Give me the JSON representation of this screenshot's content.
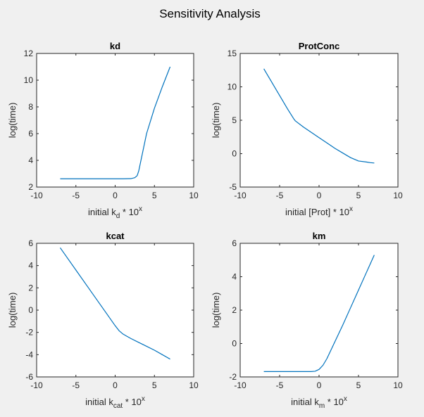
{
  "figure": {
    "title": "Sensitivity Analysis",
    "background": "#f0f0f0",
    "line_color": "#0072bd"
  },
  "chart_data": [
    {
      "type": "line",
      "title": "kd",
      "xlabel": {
        "base": "initial k",
        "sub": "d",
        "suffix": " * 10",
        "sup": "x"
      },
      "ylabel": "log(time)",
      "xlim": [
        -10,
        10
      ],
      "ylim": [
        2,
        12
      ],
      "xticks": [
        -10,
        -5,
        0,
        5,
        10
      ],
      "yticks": [
        2,
        4,
        6,
        8,
        10,
        12
      ],
      "grid": false,
      "series": [
        {
          "x": [
            -7,
            -5,
            -3,
            -1,
            0,
            1,
            2,
            2.5,
            2.8,
            3.0,
            3.5,
            4,
            5,
            6,
            7
          ],
          "y": [
            2.62,
            2.62,
            2.62,
            2.62,
            2.62,
            2.62,
            2.63,
            2.7,
            2.85,
            3.2,
            4.6,
            6.0,
            7.9,
            9.5,
            11.0
          ]
        }
      ]
    },
    {
      "type": "line",
      "title": "ProtConc",
      "xlabel": {
        "base": "initial [Prot]",
        "sub": "",
        "suffix": " * 10",
        "sup": "x"
      },
      "ylabel": "log(time)",
      "xlim": [
        -10,
        10
      ],
      "ylim": [
        -5,
        15
      ],
      "xticks": [
        -10,
        -5,
        0,
        5,
        10
      ],
      "yticks": [
        -5,
        0,
        5,
        10,
        15
      ],
      "grid": false,
      "series": [
        {
          "x": [
            -7,
            -6,
            -5,
            -4,
            -3.2,
            -3,
            -2,
            -1,
            0,
            1,
            2,
            3,
            4,
            5,
            6,
            6.5,
            7
          ],
          "y": [
            12.7,
            10.7,
            8.7,
            6.7,
            5.2,
            4.9,
            4.0,
            3.2,
            2.4,
            1.6,
            0.8,
            0.1,
            -0.6,
            -1.1,
            -1.25,
            -1.35,
            -1.4
          ]
        }
      ]
    },
    {
      "type": "line",
      "title": "kcat",
      "xlabel": {
        "base": "initial k",
        "sub": "cat",
        "suffix": " * 10",
        "sup": "x"
      },
      "ylabel": "log(time)",
      "xlim": [
        -10,
        10
      ],
      "ylim": [
        -6,
        6
      ],
      "xticks": [
        -10,
        -5,
        0,
        5,
        10
      ],
      "yticks": [
        -6,
        -4,
        -2,
        0,
        2,
        4,
        6
      ],
      "grid": false,
      "series": [
        {
          "x": [
            -7,
            -5,
            -3,
            -1,
            0,
            0.5,
            1,
            1.5,
            2,
            3,
            4,
            5,
            6,
            7
          ],
          "y": [
            5.6,
            3.6,
            1.6,
            -0.4,
            -1.4,
            -1.85,
            -2.15,
            -2.35,
            -2.55,
            -2.9,
            -3.25,
            -3.6,
            -4.0,
            -4.4
          ]
        }
      ]
    },
    {
      "type": "line",
      "title": "km",
      "xlabel": {
        "base": "initial k",
        "sub": "m",
        "suffix": " * 10",
        "sup": "x"
      },
      "ylabel": "log(time)",
      "xlim": [
        -10,
        10
      ],
      "ylim": [
        -2,
        6
      ],
      "xticks": [
        -10,
        -5,
        0,
        5,
        10
      ],
      "yticks": [
        -2,
        0,
        2,
        4,
        6
      ],
      "grid": false,
      "series": [
        {
          "x": [
            -7,
            -5,
            -3,
            -1,
            -0.5,
            0,
            0.5,
            1,
            1.5,
            2,
            3,
            4,
            5,
            6,
            7
          ],
          "y": [
            -1.68,
            -1.68,
            -1.68,
            -1.68,
            -1.66,
            -1.55,
            -1.3,
            -0.9,
            -0.4,
            0.1,
            1.1,
            2.15,
            3.2,
            4.25,
            5.3
          ]
        }
      ]
    }
  ]
}
